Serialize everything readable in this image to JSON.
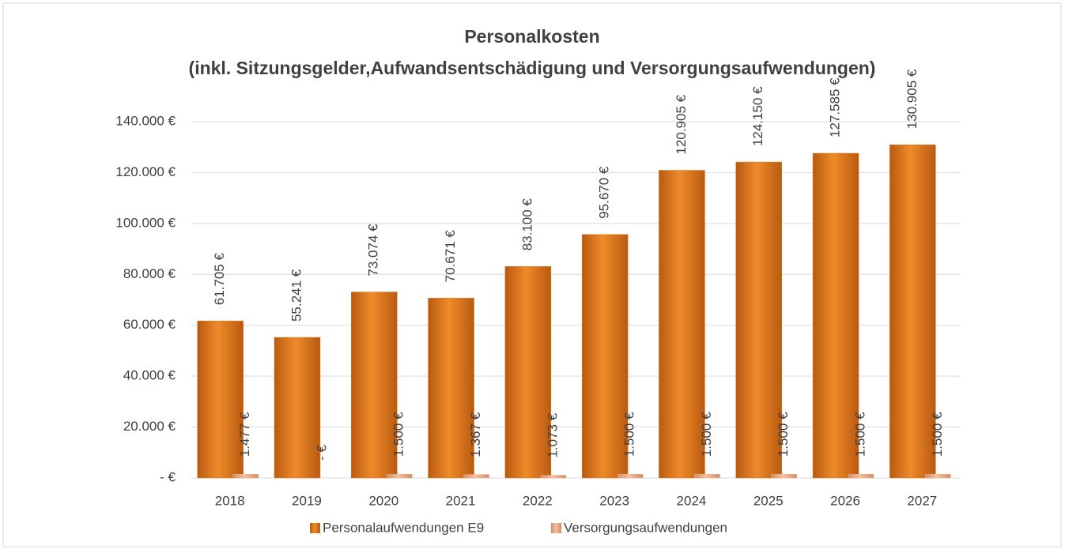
{
  "chart_data": {
    "type": "bar",
    "title": "Personalkosten",
    "subtitle": "(inkl. Sitzungsgelder,Aufwandsentschädigung und Versorgungsaufwendungen)",
    "categories": [
      "2018",
      "2019",
      "2020",
      "2021",
      "2022",
      "2023",
      "2024",
      "2025",
      "2026",
      "2027"
    ],
    "series": [
      {
        "name": "Personalaufwendungen E9",
        "color": "#e07b22",
        "values": [
          61705,
          55241,
          73074,
          70671,
          83100,
          95670,
          120905,
          124150,
          127585,
          130905
        ],
        "value_labels": [
          "61.705 €",
          "55.241 €",
          "73.074 €",
          "70.671 €",
          "83.100 €",
          "95.670 €",
          "120.905 €",
          "124.150 €",
          "127.585 €",
          "130.905 €"
        ]
      },
      {
        "name": "Versorgungsaufwendungen",
        "color": "#f0b08a",
        "values": [
          1477,
          0,
          1500,
          1367,
          1073,
          1500,
          1500,
          1500,
          1500,
          1500
        ],
        "value_labels": [
          "1.477 €",
          "-   €",
          "1.500 €",
          "1.367 €",
          "1.073 €",
          "1.500 €",
          "1.500 €",
          "1.500 €",
          "1.500 €",
          "1.500 €"
        ]
      }
    ],
    "ylim": [
      0,
      140000
    ],
    "yticks": [
      {
        "value": 0,
        "label": "-   €"
      },
      {
        "value": 20000,
        "label": "20.000 €"
      },
      {
        "value": 40000,
        "label": "40.000 €"
      },
      {
        "value": 60000,
        "label": "60.000 €"
      },
      {
        "value": 80000,
        "label": "80.000 €"
      },
      {
        "value": 100000,
        "label": "100.000 €"
      },
      {
        "value": 120000,
        "label": "120.000 €"
      },
      {
        "value": 140000,
        "label": "140.000 €"
      }
    ],
    "grid": true,
    "legend": "bottom"
  }
}
